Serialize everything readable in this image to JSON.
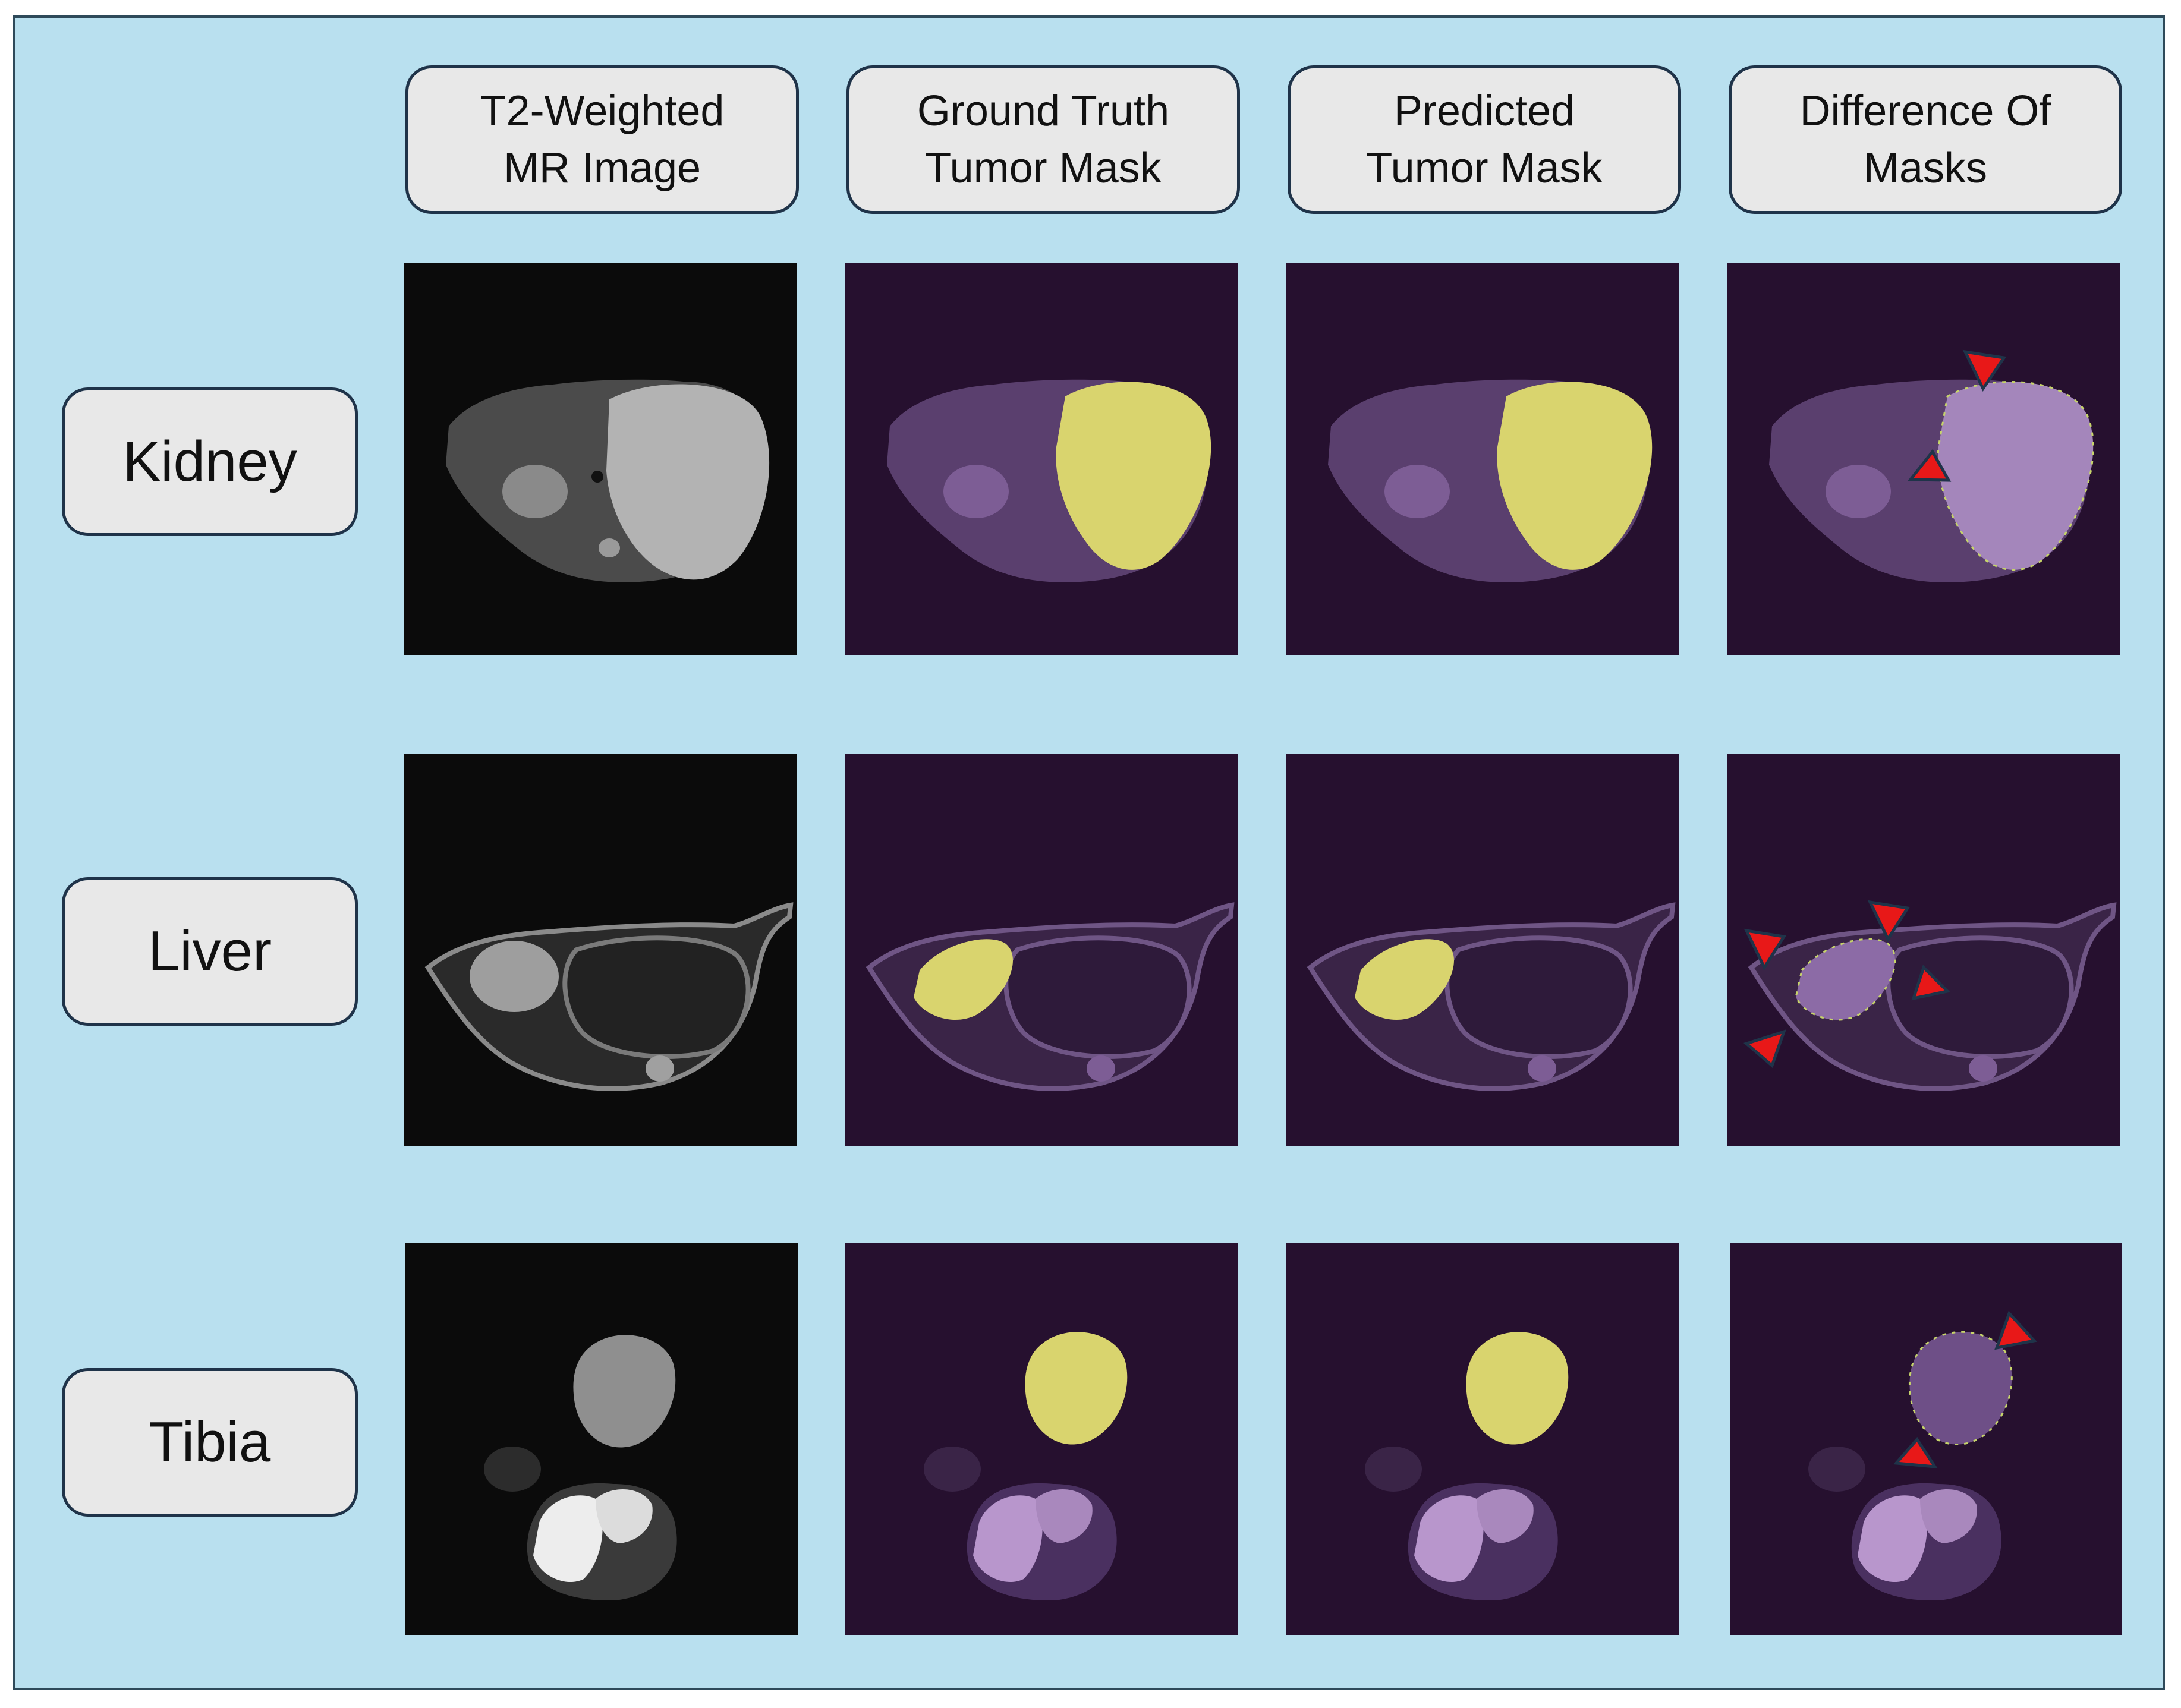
{
  "columns": [
    {
      "label": "T2-Weighted\nMR Image"
    },
    {
      "label": "Ground Truth\nTumor Mask"
    },
    {
      "label": "Predicted\nTumor Mask"
    },
    {
      "label": "Difference Of\nMasks"
    }
  ],
  "rows": [
    {
      "label": "Kidney"
    },
    {
      "label": "Liver"
    },
    {
      "label": "Tibia"
    }
  ],
  "colors": {
    "figure_background": "#b9e0ef",
    "mr_background": "#0b0b0b",
    "overlay_background": "#26102f",
    "tumor_mask": "#d9d46e",
    "tissue_overlay": "#8c6ba6",
    "arrowhead": "#e81818"
  },
  "icons": [
    "red-arrowhead-icon"
  ]
}
